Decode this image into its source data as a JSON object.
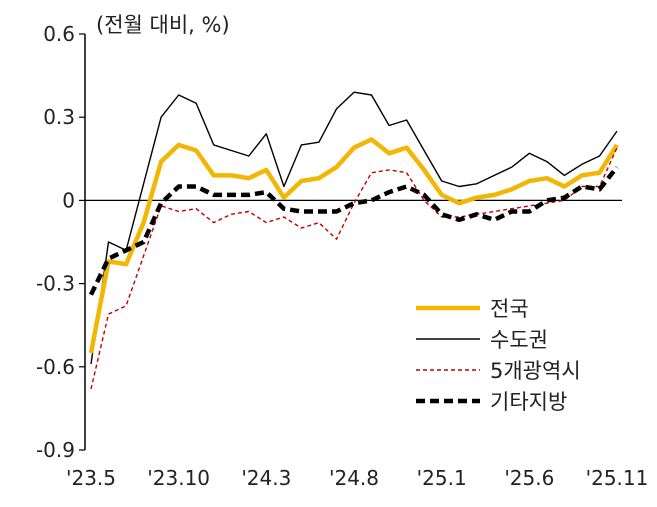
{
  "chart_data": {
    "type": "line",
    "unit_label": "(전월 대비, %)",
    "ylim": [
      -0.9,
      0.6
    ],
    "yticks": [
      0.6,
      0.3,
      0,
      -0.3,
      -0.6,
      -0.9
    ],
    "ytick_labels": [
      "0.6",
      "0.3",
      "0",
      "-0.3",
      "-0.6",
      "-0.9"
    ],
    "xtick_labels": [
      {
        "label": "'23.5",
        "index": 0
      },
      {
        "label": "'23.10",
        "index": 5
      },
      {
        "label": "'24.3",
        "index": 10
      },
      {
        "label": "'24.8",
        "index": 15
      },
      {
        "label": "'25.1",
        "index": 20
      },
      {
        "label": "'25.6",
        "index": 25
      },
      {
        "label": "'25.11",
        "index": 30
      }
    ],
    "x_start": "2023-05",
    "x_end": "2025-11",
    "legend_position": "bottom-right",
    "grid": false,
    "series": [
      {
        "name": "전국",
        "color": "#F2B705",
        "style": "solid-thick",
        "values": [
          -0.55,
          -0.22,
          -0.23,
          -0.08,
          0.14,
          0.2,
          0.18,
          0.09,
          0.09,
          0.08,
          0.11,
          0.01,
          0.07,
          0.08,
          0.12,
          0.19,
          0.22,
          0.17,
          0.19,
          0.11,
          0.02,
          -0.01,
          0.01,
          0.02,
          0.04,
          0.07,
          0.08,
          0.05,
          0.09,
          0.1,
          0.2
        ]
      },
      {
        "name": "수도권",
        "color": "#000000",
        "style": "solid-thin",
        "values": [
          -0.59,
          -0.15,
          -0.18,
          0.06,
          0.3,
          0.38,
          0.35,
          0.2,
          0.18,
          0.16,
          0.24,
          0.05,
          0.2,
          0.21,
          0.33,
          0.39,
          0.38,
          0.27,
          0.29,
          0.18,
          0.07,
          0.05,
          0.06,
          0.09,
          0.12,
          0.17,
          0.14,
          0.09,
          0.13,
          0.16,
          0.25
        ]
      },
      {
        "name": "5개광역시",
        "color": "#C00000",
        "style": "dashed-thin",
        "values": [
          -0.68,
          -0.41,
          -0.38,
          -0.2,
          -0.02,
          -0.04,
          -0.03,
          -0.08,
          -0.05,
          -0.04,
          -0.08,
          -0.06,
          -0.1,
          -0.08,
          -0.14,
          -0.01,
          0.1,
          0.11,
          0.1,
          0.0,
          -0.06,
          -0.06,
          -0.05,
          -0.04,
          -0.03,
          -0.02,
          -0.01,
          0.0,
          0.05,
          0.05,
          0.19
        ]
      },
      {
        "name": "기타지방",
        "color": "#000000",
        "style": "dashed-thick",
        "values": [
          -0.34,
          -0.21,
          -0.18,
          -0.15,
          -0.01,
          0.05,
          0.05,
          0.02,
          0.02,
          0.02,
          0.03,
          -0.03,
          -0.04,
          -0.04,
          -0.04,
          -0.01,
          0.0,
          0.03,
          0.05,
          0.02,
          -0.05,
          -0.07,
          -0.05,
          -0.07,
          -0.04,
          -0.04,
          0.0,
          0.01,
          0.05,
          0.04,
          0.12
        ]
      }
    ]
  }
}
